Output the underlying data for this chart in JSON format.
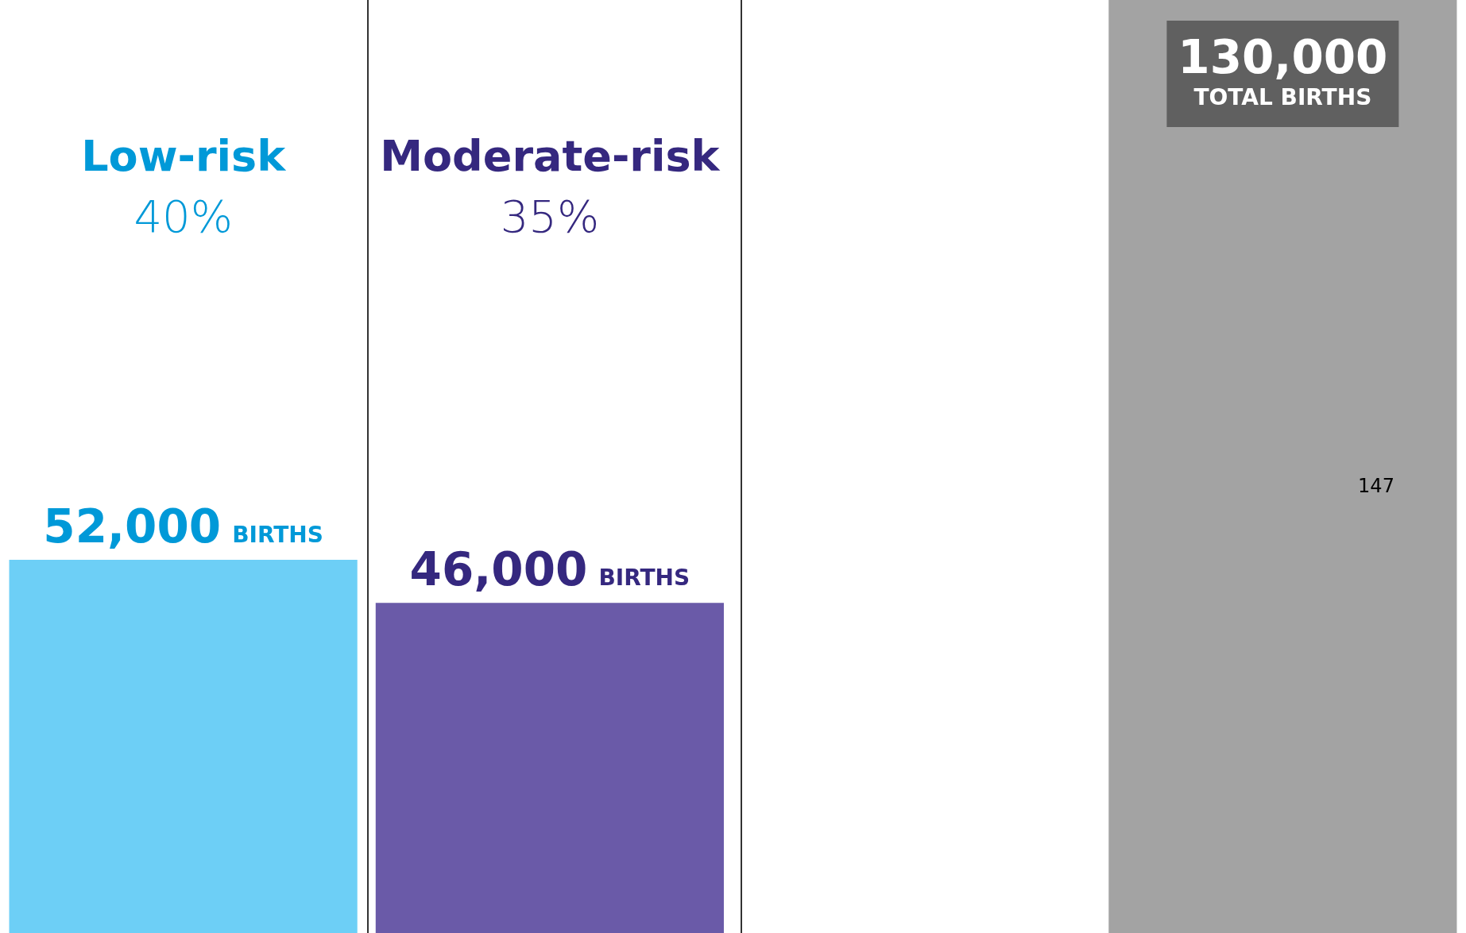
{
  "chart_data": {
    "type": "bar",
    "categories": [
      "Low-risk",
      "Moderate-risk",
      null,
      null
    ],
    "values": [
      52000,
      46000,
      null,
      130000
    ],
    "colors": [
      "#6dcff6",
      "#6a5aa8",
      "#a3a3a3",
      "#a3a3a3"
    ],
    "value_labels": [
      "52,000 BIRTHS",
      "46,000 BIRTHS",
      null,
      "130,000 TOTAL BIRTHS"
    ],
    "ylim": [
      0,
      130000
    ],
    "tick_labels": false,
    "legend": false,
    "annotations": [
      "40%",
      "35%",
      "147"
    ]
  }
}
